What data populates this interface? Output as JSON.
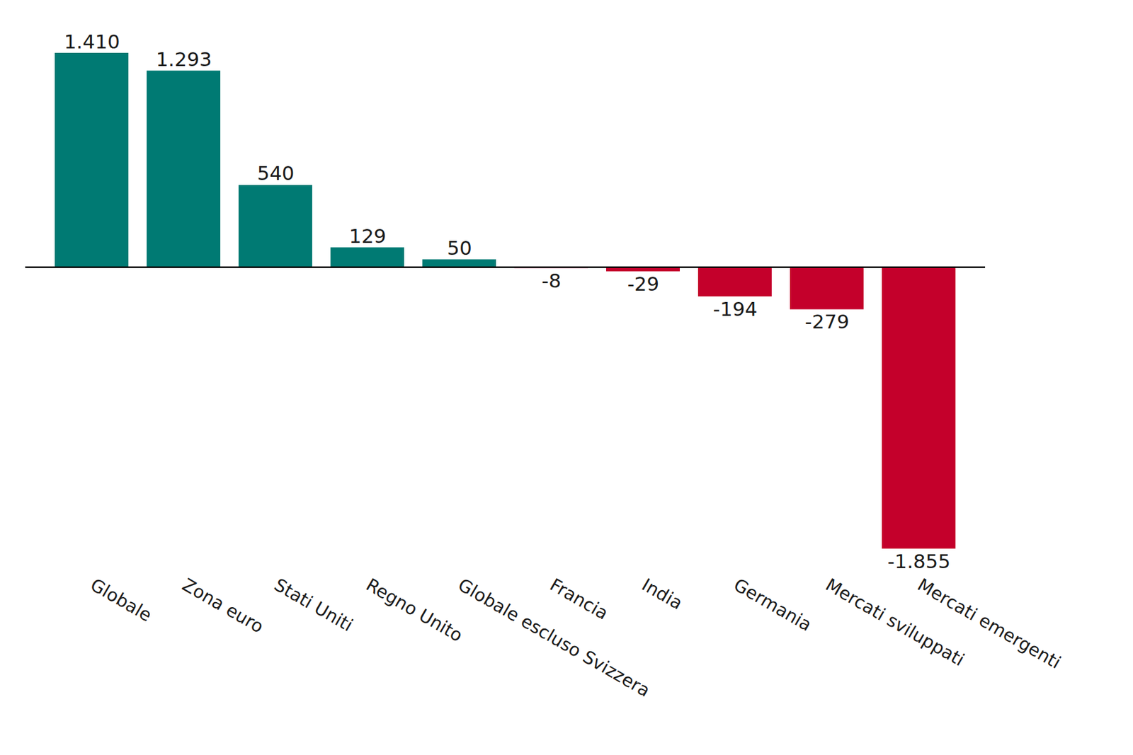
{
  "chart_data": {
    "type": "bar",
    "categories": [
      "Globale",
      "Zona euro",
      "Stati Uniti",
      "Regno Unito",
      "Globale escluso Svizzera",
      "Francia",
      "India",
      "Germania",
      "Mercati sviluppati",
      "Mercati emergenti"
    ],
    "values": [
      1410,
      1293,
      540,
      129,
      50,
      -8,
      -29,
      -194,
      -279,
      -1855
    ],
    "value_labels": [
      "1.410",
      "1.293",
      "540",
      "129",
      "50",
      "-8",
      "-29",
      "-194",
      "-279",
      "-1.855"
    ],
    "colors": [
      "#007a73",
      "#007a73",
      "#007a73",
      "#007a73",
      "#007a73",
      "#c4002b",
      "#c4002b",
      "#c4002b",
      "#c4002b",
      "#c4002b"
    ],
    "ylim": [
      -1855,
      1410
    ],
    "data_labels": true,
    "tick_labels": "x"
  }
}
